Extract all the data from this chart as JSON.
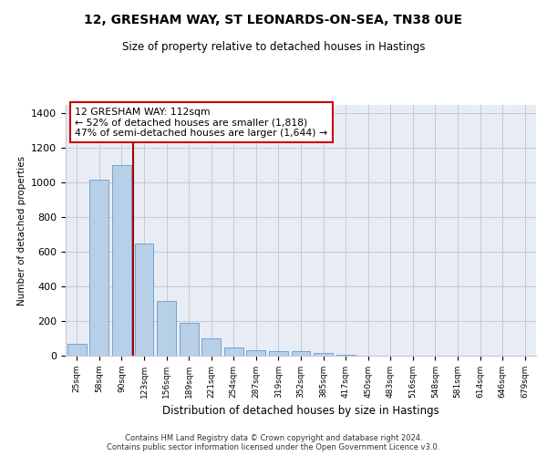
{
  "title1": "12, GRESHAM WAY, ST LEONARDS-ON-SEA, TN38 0UE",
  "title2": "Size of property relative to detached houses in Hastings",
  "xlabel": "Distribution of detached houses by size in Hastings",
  "ylabel": "Number of detached properties",
  "categories": [
    "25sqm",
    "58sqm",
    "90sqm",
    "123sqm",
    "156sqm",
    "189sqm",
    "221sqm",
    "254sqm",
    "287sqm",
    "319sqm",
    "352sqm",
    "385sqm",
    "417sqm",
    "450sqm",
    "483sqm",
    "516sqm",
    "548sqm",
    "581sqm",
    "614sqm",
    "646sqm",
    "679sqm"
  ],
  "values": [
    70,
    1020,
    1100,
    650,
    315,
    190,
    100,
    50,
    30,
    25,
    25,
    15,
    5,
    0,
    0,
    0,
    0,
    0,
    0,
    0,
    0
  ],
  "bar_color": "#b8cfe8",
  "bar_edgecolor": "#6699cc",
  "vline_index": 2.5,
  "annotation_text1": "12 GRESHAM WAY: 112sqm",
  "annotation_text2": "← 52% of detached houses are smaller (1,818)",
  "annotation_text3": "47% of semi-detached houses are larger (1,644) →",
  "annotation_box_color": "#ffffff",
  "annotation_box_edgecolor": "#cc0000",
  "vline_color": "#aa0000",
  "ylim": [
    0,
    1450
  ],
  "yticks": [
    0,
    200,
    400,
    600,
    800,
    1000,
    1200,
    1400
  ],
  "grid_color": "#c8c8d0",
  "bg_color": "#e8edf5",
  "footer1": "Contains HM Land Registry data © Crown copyright and database right 2024.",
  "footer2": "Contains public sector information licensed under the Open Government Licence v3.0."
}
